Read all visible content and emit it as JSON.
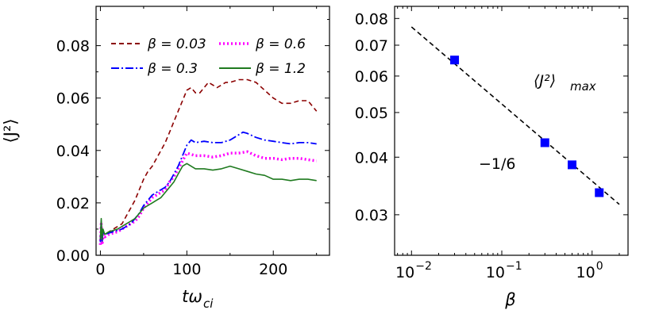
{
  "chart_data": [
    {
      "type": "line",
      "xlabel": "tω",
      "xlabel_sub": "ci",
      "ylabel": "⟨J²⟩",
      "xlim": [
        -5,
        265
      ],
      "ylim": [
        0,
        0.095
      ],
      "xticks": [
        0,
        100,
        200
      ],
      "yticks": [
        0.0,
        0.02,
        0.04,
        0.06,
        0.08
      ],
      "ytick_labels": [
        "0.00",
        "0.02",
        "0.04",
        "0.06",
        "0.08"
      ],
      "legend_placement": "top",
      "series": [
        {
          "name": "β = 0.03",
          "color": "#8b0000",
          "style": "dashed",
          "x": [
            0,
            1,
            2,
            3,
            5,
            10,
            15,
            20,
            25,
            30,
            35,
            40,
            45,
            50,
            55,
            60,
            65,
            70,
            75,
            80,
            85,
            90,
            95,
            100,
            105,
            110,
            115,
            120,
            125,
            130,
            135,
            140,
            145,
            150,
            160,
            170,
            180,
            190,
            200,
            210,
            220,
            230,
            240,
            245,
            250
          ],
          "y": [
            0.006,
            0.013,
            0.005,
            0.009,
            0.008,
            0.009,
            0.01,
            0.011,
            0.012,
            0.015,
            0.018,
            0.021,
            0.025,
            0.029,
            0.032,
            0.034,
            0.037,
            0.04,
            0.043,
            0.047,
            0.051,
            0.055,
            0.059,
            0.063,
            0.064,
            0.062,
            0.062,
            0.064,
            0.066,
            0.065,
            0.064,
            0.065,
            0.066,
            0.066,
            0.067,
            0.067,
            0.066,
            0.063,
            0.06,
            0.058,
            0.058,
            0.059,
            0.059,
            0.057,
            0.055
          ]
        },
        {
          "name": "β = 0.6",
          "color": "#ff00ff",
          "style": "dotted",
          "x": [
            0,
            1,
            2,
            3,
            5,
            10,
            15,
            20,
            25,
            30,
            35,
            40,
            45,
            50,
            55,
            60,
            65,
            70,
            75,
            80,
            85,
            90,
            95,
            100,
            110,
            120,
            130,
            140,
            150,
            160,
            170,
            180,
            190,
            200,
            210,
            220,
            230,
            240,
            250
          ],
          "y": [
            0.004,
            0.012,
            0.004,
            0.008,
            0.007,
            0.008,
            0.0085,
            0.009,
            0.01,
            0.011,
            0.012,
            0.013,
            0.015,
            0.018,
            0.02,
            0.022,
            0.023,
            0.024,
            0.025,
            0.028,
            0.03,
            0.033,
            0.036,
            0.039,
            0.038,
            0.038,
            0.0375,
            0.038,
            0.039,
            0.039,
            0.0395,
            0.038,
            0.037,
            0.037,
            0.0365,
            0.037,
            0.037,
            0.0365,
            0.036
          ]
        },
        {
          "name": "β = 0.3",
          "color": "#0000ff",
          "style": "dashdot",
          "x": [
            0,
            1,
            2,
            3,
            5,
            10,
            15,
            20,
            25,
            30,
            35,
            40,
            45,
            50,
            55,
            60,
            65,
            70,
            75,
            80,
            85,
            90,
            95,
            100,
            105,
            110,
            120,
            130,
            140,
            150,
            160,
            165,
            170,
            180,
            190,
            200,
            210,
            220,
            230,
            240,
            250
          ],
          "y": [
            0.005,
            0.013,
            0.005,
            0.009,
            0.008,
            0.0085,
            0.009,
            0.0095,
            0.01,
            0.011,
            0.012,
            0.014,
            0.016,
            0.019,
            0.021,
            0.023,
            0.024,
            0.025,
            0.026,
            0.028,
            0.031,
            0.034,
            0.038,
            0.042,
            0.044,
            0.043,
            0.0435,
            0.043,
            0.043,
            0.044,
            0.046,
            0.047,
            0.0465,
            0.045,
            0.044,
            0.0435,
            0.043,
            0.0425,
            0.043,
            0.043,
            0.0425
          ]
        },
        {
          "name": "β = 1.2",
          "color": "#1f7a1f",
          "style": "solid",
          "x": [
            0,
            1,
            2,
            3,
            5,
            10,
            15,
            20,
            25,
            30,
            35,
            40,
            45,
            50,
            55,
            60,
            65,
            70,
            75,
            80,
            85,
            90,
            95,
            100,
            110,
            120,
            130,
            140,
            150,
            160,
            170,
            180,
            190,
            200,
            210,
            220,
            230,
            240,
            250
          ],
          "y": [
            0.006,
            0.014,
            0.006,
            0.01,
            0.008,
            0.009,
            0.0095,
            0.01,
            0.011,
            0.012,
            0.013,
            0.014,
            0.016,
            0.018,
            0.019,
            0.02,
            0.021,
            0.022,
            0.024,
            0.026,
            0.028,
            0.031,
            0.034,
            0.035,
            0.033,
            0.033,
            0.0325,
            0.033,
            0.034,
            0.033,
            0.032,
            0.031,
            0.0305,
            0.029,
            0.029,
            0.0285,
            0.029,
            0.029,
            0.0285
          ]
        }
      ]
    },
    {
      "type": "scatter",
      "xscale": "log",
      "yscale": "log",
      "xlabel": "β",
      "xlim": [
        0.0065,
        2.5
      ],
      "ylim": [
        0.0245,
        0.085
      ],
      "xticks": [
        0.01,
        0.1,
        1
      ],
      "xtick_labels": [
        {
          "base": "10",
          "exp": "−2"
        },
        {
          "base": "10",
          "exp": "−1"
        },
        {
          "base": "10",
          "exp": "0"
        }
      ],
      "yticks": [
        0.03,
        0.04,
        0.05,
        0.06,
        0.07,
        0.08
      ],
      "ytick_labels": [
        "0.03",
        "0.04",
        "0.05",
        "0.06",
        "0.07",
        "0.08"
      ],
      "title": "⟨J²⟩",
      "title_sub": "max",
      "points": {
        "color": "#0000ff",
        "marker": "square",
        "x": [
          0.03,
          0.3,
          0.6,
          1.2
        ],
        "y": [
          0.065,
          0.043,
          0.0385,
          0.0335
        ]
      },
      "fit": {
        "label": "−1/6",
        "slope": -0.1667,
        "x": [
          0.01,
          2.0
        ],
        "y": [
          0.0767,
          0.0316
        ],
        "style": "dashed",
        "color": "#000000"
      }
    }
  ]
}
